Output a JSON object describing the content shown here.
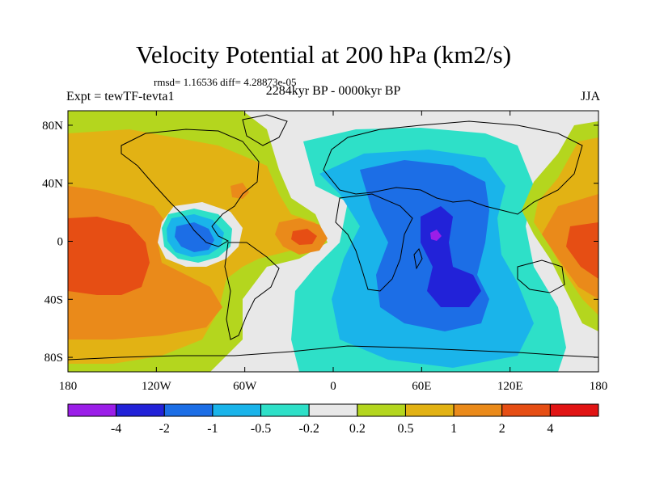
{
  "title": "Velocity Potential at 200 hPa (km2/s)",
  "stats": "rmsd= 1.16536 diff= 4.28873e-05",
  "period": "2284kyr BP - 0000kyr BP",
  "experiment": "Expt = tewTF-tevta1",
  "season": "JJA",
  "axes": {
    "lat_labels": [
      "80N",
      "40N",
      "0",
      "40S",
      "80S"
    ],
    "lat_values": [
      80,
      40,
      0,
      -40,
      -80
    ],
    "lon_labels": [
      "180",
      "120W",
      "60W",
      "0",
      "60E",
      "120E",
      "180"
    ],
    "lon_values": [
      -180,
      -120,
      -60,
      0,
      60,
      120,
      180
    ],
    "lat_range": [
      -90,
      90
    ],
    "lon_range": [
      -180,
      180
    ]
  },
  "colorbar": {
    "colors": [
      "#9b1ee8",
      "#2222d8",
      "#1c6ee6",
      "#1ab4ea",
      "#2ee0c8",
      "#e8e8e8",
      "#b4d61e",
      "#e2b214",
      "#ea8a1a",
      "#e64e14",
      "#e11414"
    ],
    "labels": [
      "-4",
      "-2",
      "-1",
      "-0.5",
      "-0.2",
      "0.2",
      "0.5",
      "1",
      "2",
      "4"
    ]
  }
}
